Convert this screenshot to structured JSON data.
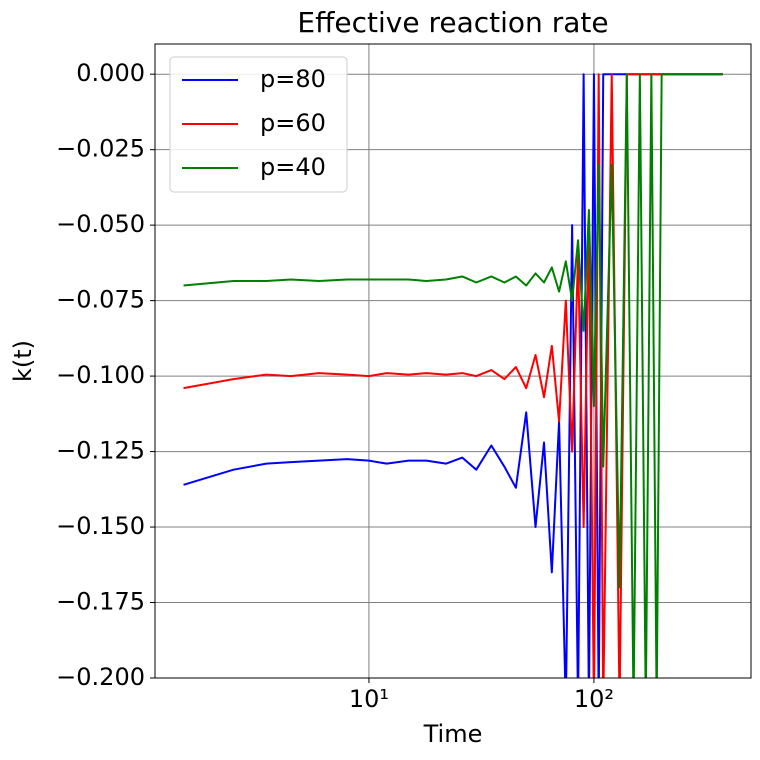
{
  "chart_data": {
    "type": "line",
    "title": "Effective reaction rate",
    "xlabel": "Time",
    "ylabel": "k(t)",
    "xscale": "log",
    "grid": true,
    "legend": "upper left",
    "xlim": [
      1.12,
      499
    ],
    "ylim": [
      -0.2,
      0.01
    ],
    "xticks": [
      {
        "value": 10,
        "label": "10¹"
      },
      {
        "value": 100,
        "label": "10²"
      }
    ],
    "yticks": [
      {
        "value": 0,
        "label": "0.000"
      },
      {
        "value": -0.025,
        "label": "−0.025"
      },
      {
        "value": -0.05,
        "label": "−0.050"
      },
      {
        "value": -0.075,
        "label": "−0.075"
      },
      {
        "value": -0.1,
        "label": "−0.100"
      },
      {
        "value": -0.125,
        "label": "−0.125"
      },
      {
        "value": -0.15,
        "label": "−0.150"
      },
      {
        "value": -0.175,
        "label": "−0.175"
      },
      {
        "value": -0.2,
        "label": "−0.200"
      }
    ],
    "x": [
      1.5,
      2.5,
      3.5,
      4.5,
      6,
      8,
      10,
      12,
      15,
      18,
      22,
      26,
      30,
      35,
      40,
      45,
      50,
      55,
      60,
      65,
      70,
      75,
      80,
      85,
      90,
      95,
      100,
      105,
      110,
      120,
      130,
      140,
      150,
      160,
      170,
      180,
      190,
      200,
      250,
      300,
      374
    ],
    "series": [
      {
        "name": "p=80",
        "color": "#0000ff",
        "values": [
          -0.136,
          -0.131,
          -0.129,
          -0.1285,
          -0.128,
          -0.1275,
          -0.128,
          -0.129,
          -0.128,
          -0.128,
          -0.129,
          -0.127,
          -0.131,
          -0.123,
          -0.13,
          -0.137,
          -0.112,
          -0.15,
          -0.122,
          -0.165,
          -0.115,
          -0.21,
          -0.05,
          -0.21,
          0,
          -0.21,
          0,
          -0.21,
          0,
          0,
          0,
          0,
          0,
          0,
          0,
          0,
          0,
          0,
          0,
          0,
          0
        ]
      },
      {
        "name": "p=60",
        "color": "#ff0000",
        "values": [
          -0.104,
          -0.101,
          -0.0995,
          -0.1,
          -0.099,
          -0.0995,
          -0.1,
          -0.099,
          -0.0995,
          -0.099,
          -0.0995,
          -0.099,
          -0.1,
          -0.098,
          -0.101,
          -0.097,
          -0.104,
          -0.093,
          -0.107,
          -0.09,
          -0.115,
          -0.075,
          -0.125,
          -0.06,
          -0.15,
          -0.05,
          -0.21,
          0,
          -0.21,
          0,
          -0.21,
          0,
          0,
          0,
          0,
          0,
          0,
          0,
          0,
          0,
          0
        ]
      },
      {
        "name": "p=40",
        "color": "#008000",
        "values": [
          -0.07,
          -0.0685,
          -0.0685,
          -0.068,
          -0.0685,
          -0.068,
          -0.068,
          -0.068,
          -0.068,
          -0.0685,
          -0.068,
          -0.067,
          -0.069,
          -0.067,
          -0.069,
          -0.067,
          -0.07,
          -0.066,
          -0.069,
          -0.064,
          -0.072,
          -0.062,
          -0.075,
          -0.055,
          -0.085,
          -0.045,
          -0.11,
          -0.03,
          -0.13,
          -0.03,
          -0.17,
          0,
          -0.21,
          0,
          -0.21,
          0,
          -0.21,
          0,
          0,
          0,
          0
        ]
      }
    ]
  }
}
